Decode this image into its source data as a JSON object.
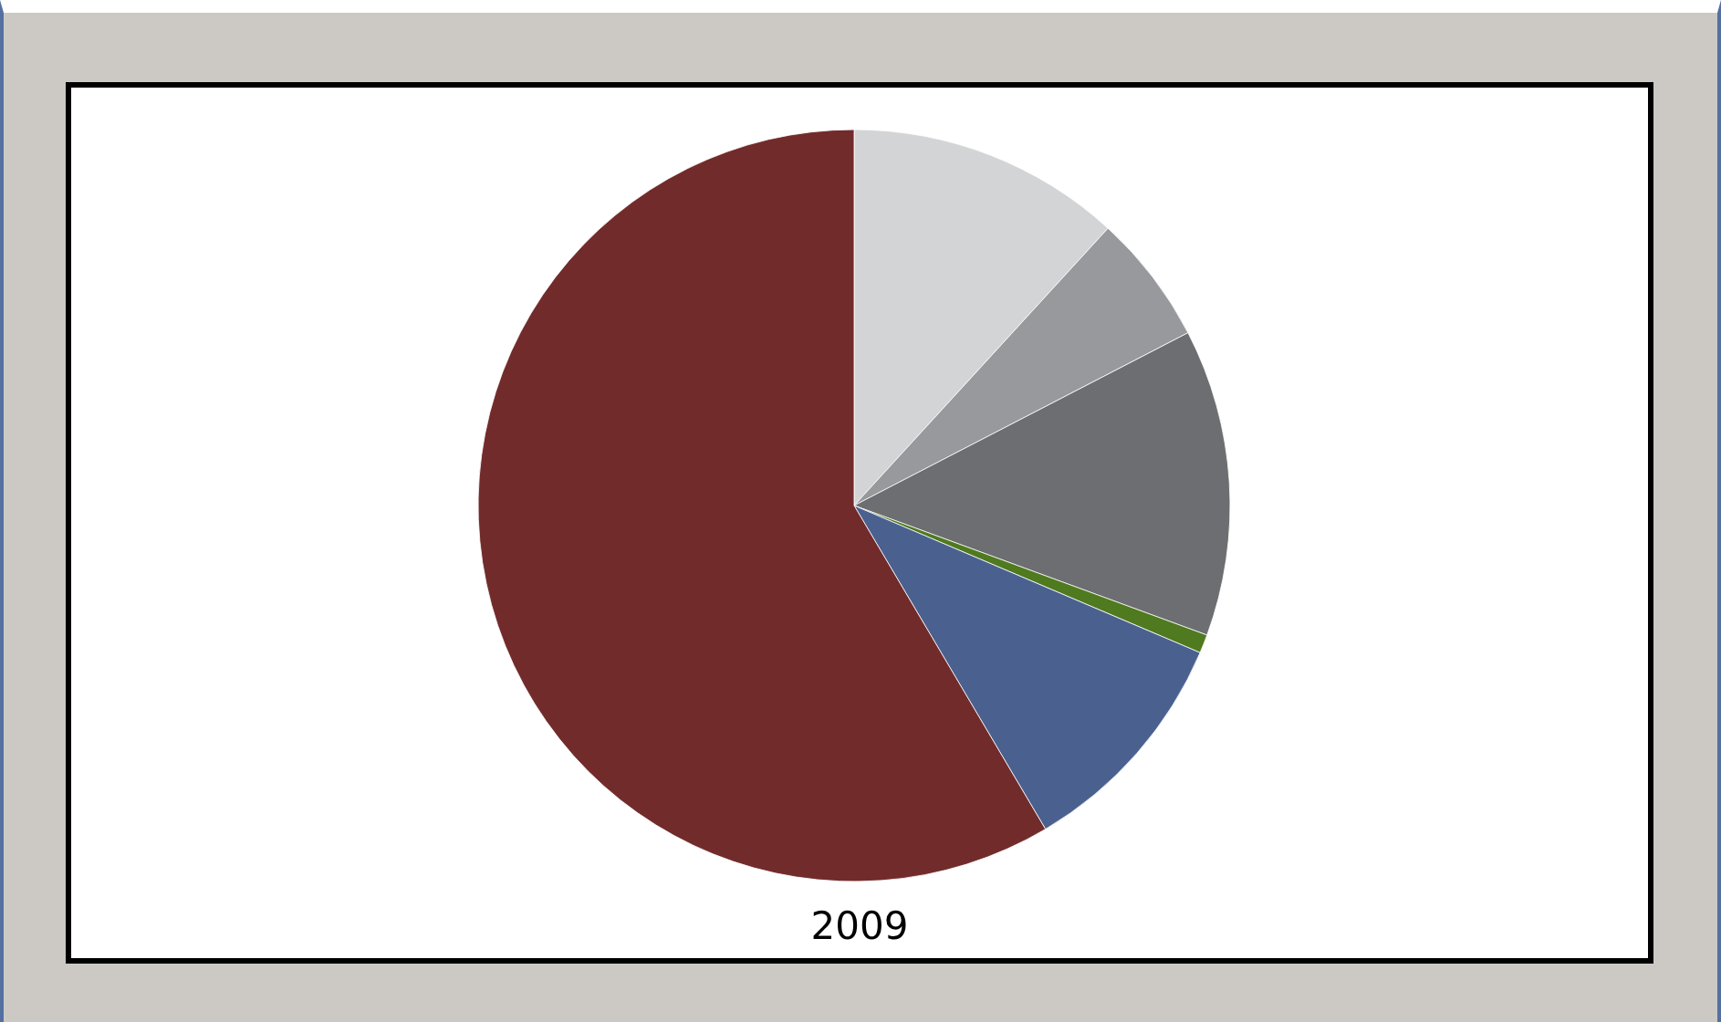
{
  "chart_data": {
    "type": "pie",
    "title": "2009",
    "categories": [
      null,
      null,
      null,
      null,
      null,
      null
    ],
    "values": [
      11.8,
      5.6,
      13.2,
      0.8,
      10.1,
      58.5
    ],
    "colors": [
      "#d3d4d6",
      "#98999c",
      "#6d6e71",
      "#4f7a1f",
      "#4a6190",
      "#722b2b"
    ]
  }
}
